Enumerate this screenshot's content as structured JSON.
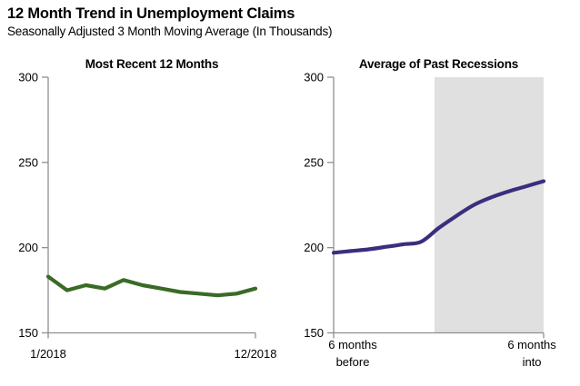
{
  "header": {
    "title": "12 Month Trend in Unemployment Claims",
    "subtitle": "Seasonally Adjusted 3 Month Moving Average (In Thousands)"
  },
  "colors": {
    "recent_line": "#3A6B26",
    "recession_line": "#3B2E7E",
    "recession_shade": "#E0E0E0",
    "axis": "#8E8E8E",
    "text": "#000000",
    "background": "#FFFFFF"
  },
  "chart_data": [
    {
      "type": "line",
      "title": "Most Recent 12 Months",
      "x_tick_labels": [
        [
          "1/2018"
        ],
        [
          "12/2018"
        ]
      ],
      "values": [
        183,
        175,
        178,
        176,
        181,
        178,
        176,
        174,
        173,
        172,
        173,
        176
      ],
      "ylim": [
        150,
        300
      ],
      "yticks": [
        150,
        200,
        250,
        300
      ],
      "grid": false,
      "legend": "none",
      "smooth": false,
      "line_color": "#3A6B26"
    },
    {
      "type": "line",
      "title": "Average of Past Recessions",
      "x_tick_labels": [
        [
          "6 months",
          "before"
        ],
        [
          "6 months",
          "into"
        ]
      ],
      "values": [
        197,
        198,
        199,
        200.5,
        202,
        203.5,
        211.5,
        218.5,
        225,
        229.5,
        233,
        236,
        239
      ],
      "ylim": [
        150,
        300
      ],
      "yticks": [
        150,
        200,
        250,
        300
      ],
      "grid": false,
      "legend": "none",
      "smooth": true,
      "line_color": "#3B2E7E",
      "shaded_region": {
        "start_frac": 0.48,
        "end_frac": 1.0,
        "color": "#E0E0E0"
      }
    }
  ]
}
